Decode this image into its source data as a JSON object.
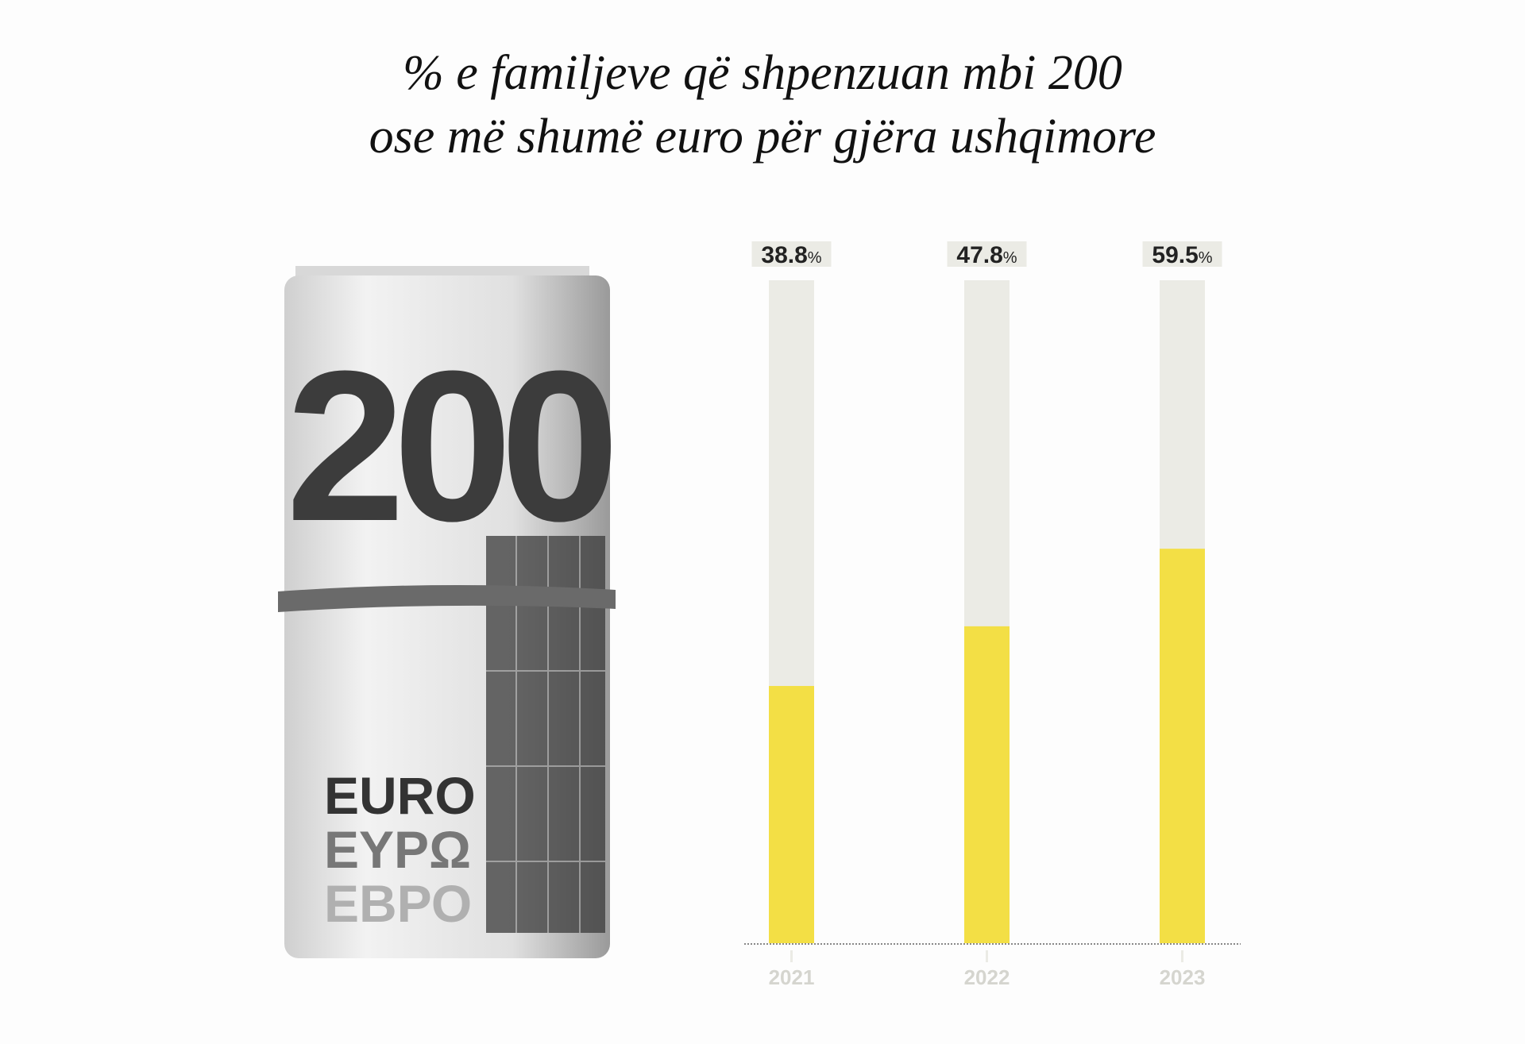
{
  "title_lines": [
    "% e familjeve që shpenzuan mbi 200",
    "ose më shumë euro për gjëra ushqimore"
  ],
  "image": {
    "description_text": [
      "200",
      "EURO",
      "ΕΥΡΩ",
      "ЕВРО"
    ]
  },
  "chart_data": {
    "type": "bar",
    "title": "% e familjeve që shpenzuan mbi 200 ose më shumë euro për gjëra ushqimore",
    "categories": [
      "2021",
      "2022",
      "2023"
    ],
    "values": [
      38.8,
      47.8,
      59.5
    ],
    "value_labels": [
      "38.8",
      "47.8",
      "59.5"
    ],
    "unit": "%",
    "ylim": [
      0,
      100
    ],
    "grid": false,
    "colors": {
      "bar": "#f3df45",
      "track": "#ebebe5",
      "label_bg": "#ebebe5",
      "tick_label": "#d5d5cf",
      "text": "#222222"
    }
  }
}
